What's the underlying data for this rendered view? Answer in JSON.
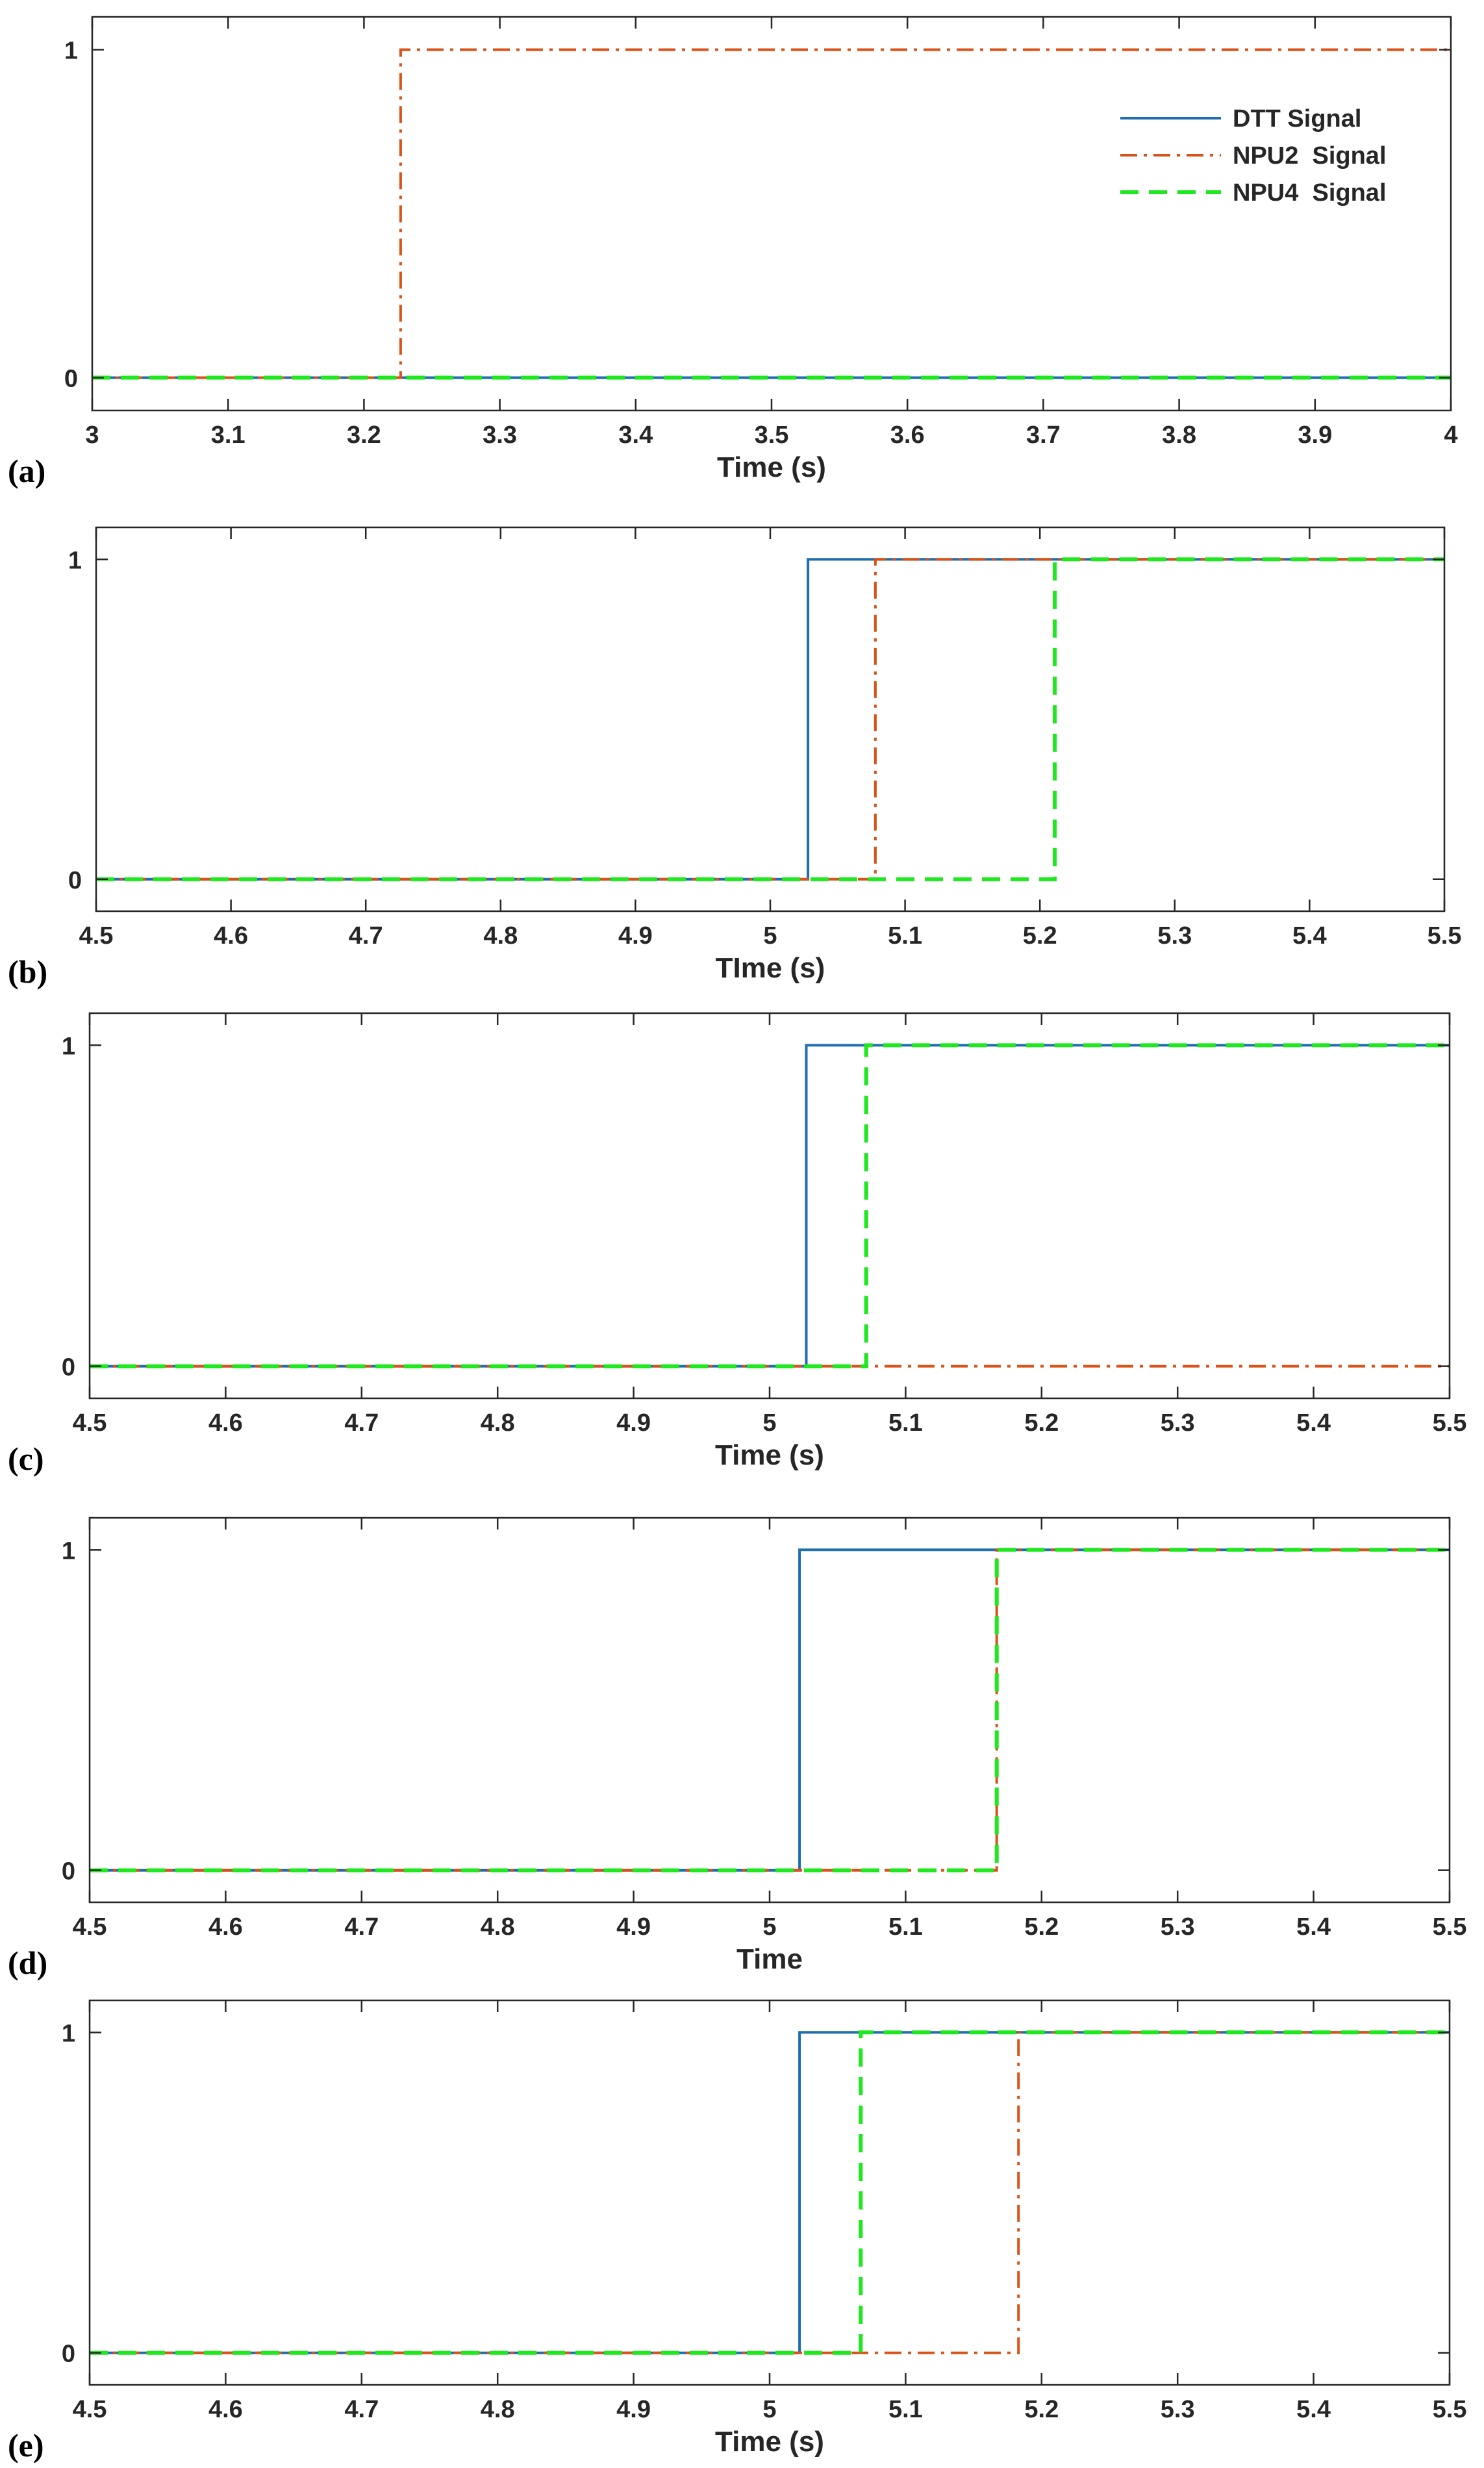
{
  "colors": {
    "dtt": "#1f6fb0",
    "npu2": "#d95319",
    "npu4": "#1ee81e",
    "axis": "#262626"
  },
  "legend": {
    "placement": "top-right of panel (a)",
    "entries": [
      "DTT Signal",
      "NPU2  Signal",
      "NPU4  Signal"
    ]
  },
  "chart_data": [
    {
      "type": "line",
      "panel_label": "(a)",
      "xlabel": "Time (s)",
      "xlim": [
        3,
        4
      ],
      "ylim": [
        -0.1,
        1.1
      ],
      "xticks": [
        "3",
        "3.1",
        "3.2",
        "3.3",
        "3.4",
        "3.5",
        "3.6",
        "3.7",
        "3.8",
        "3.9",
        "4"
      ],
      "yticks": [
        "0",
        "1"
      ],
      "series": [
        {
          "name": "DTT Signal",
          "style": "solid",
          "color": "#1f6fb0",
          "x": [
            3,
            4
          ],
          "y": [
            0,
            0
          ]
        },
        {
          "name": "NPU2  Signal",
          "style": "dashdot",
          "color": "#d95319",
          "x": [
            3,
            3.227,
            3.227,
            4
          ],
          "y": [
            0,
            0,
            1,
            1
          ]
        },
        {
          "name": "NPU4  Signal",
          "style": "dashed",
          "color": "#1ee81e",
          "x": [
            3,
            4
          ],
          "y": [
            0,
            0
          ]
        }
      ]
    },
    {
      "type": "line",
      "panel_label": "(b)",
      "xlabel": "TIme (s)",
      "xlim": [
        4.5,
        5.5
      ],
      "ylim": [
        -0.1,
        1.1
      ],
      "xticks": [
        "4.5",
        "4.6",
        "4.7",
        "4.8",
        "4.9",
        "5",
        "5.1",
        "5.2",
        "5.3",
        "5.4",
        "5.5"
      ],
      "yticks": [
        "0",
        "1"
      ],
      "series": [
        {
          "name": "DTT Signal",
          "style": "solid",
          "color": "#1f6fb0",
          "x": [
            4.5,
            5.028,
            5.028,
            5.5
          ],
          "y": [
            0,
            0,
            1,
            1
          ]
        },
        {
          "name": "NPU2  Signal",
          "style": "dashdot",
          "color": "#d95319",
          "x": [
            4.5,
            5.078,
            5.078,
            5.5
          ],
          "y": [
            0,
            0,
            1,
            1
          ]
        },
        {
          "name": "NPU4  Signal",
          "style": "dashed",
          "color": "#1ee81e",
          "x": [
            4.5,
            5.211,
            5.211,
            5.5
          ],
          "y": [
            0,
            0,
            1,
            1
          ]
        }
      ]
    },
    {
      "type": "line",
      "panel_label": "(c)",
      "xlabel": "Time (s)",
      "xlim": [
        4.5,
        5.5
      ],
      "ylim": [
        -0.1,
        1.1
      ],
      "xticks": [
        "4.5",
        "4.6",
        "4.7",
        "4.8",
        "4.9",
        "5",
        "5.1",
        "5.2",
        "5.3",
        "5.4",
        "5.5"
      ],
      "yticks": [
        "0",
        "1"
      ],
      "series": [
        {
          "name": "DTT Signal",
          "style": "solid",
          "color": "#1f6fb0",
          "x": [
            4.5,
            5.027,
            5.027,
            5.5
          ],
          "y": [
            0,
            0,
            1,
            1
          ]
        },
        {
          "name": "NPU2  Signal",
          "style": "dashdot",
          "color": "#d95319",
          "x": [
            4.5,
            5.5
          ],
          "y": [
            0,
            0
          ]
        },
        {
          "name": "NPU4  Signal",
          "style": "dashed",
          "color": "#1ee81e",
          "x": [
            4.5,
            5.071,
            5.071,
            5.5
          ],
          "y": [
            0,
            0,
            1,
            1
          ]
        }
      ]
    },
    {
      "type": "line",
      "panel_label": "(d)",
      "xlabel": "Time",
      "xlim": [
        4.5,
        5.5
      ],
      "ylim": [
        -0.1,
        1.1
      ],
      "xticks": [
        "4.5",
        "4.6",
        "4.7",
        "4.8",
        "4.9",
        "5",
        "5.1",
        "5.2",
        "5.3",
        "5.4",
        "5.5"
      ],
      "yticks": [
        "0",
        "1"
      ],
      "series": [
        {
          "name": "DTT Signal",
          "style": "solid",
          "color": "#1f6fb0",
          "x": [
            4.5,
            5.022,
            5.022,
            5.5
          ],
          "y": [
            0,
            0,
            1,
            1
          ]
        },
        {
          "name": "NPU2  Signal",
          "style": "dashdot",
          "color": "#d95319",
          "x": [
            4.5,
            5.167,
            5.167,
            5.5
          ],
          "y": [
            0,
            0,
            1,
            1
          ]
        },
        {
          "name": "NPU4  Signal",
          "style": "dashed",
          "color": "#1ee81e",
          "x": [
            4.5,
            5.167,
            5.167,
            5.5
          ],
          "y": [
            0,
            0,
            1,
            1
          ]
        }
      ]
    },
    {
      "type": "line",
      "panel_label": "(e)",
      "xlabel": "Time (s)",
      "xlim": [
        4.5,
        5.5
      ],
      "ylim": [
        -0.1,
        1.1
      ],
      "xticks": [
        "4.5",
        "4.6",
        "4.7",
        "4.8",
        "4.9",
        "5",
        "5.1",
        "5.2",
        "5.3",
        "5.4",
        "5.5"
      ],
      "yticks": [
        "0",
        "1"
      ],
      "series": [
        {
          "name": "DTT Signal",
          "style": "solid",
          "color": "#1f6fb0",
          "x": [
            4.5,
            5.022,
            5.022,
            5.5
          ],
          "y": [
            0,
            0,
            1,
            1
          ]
        },
        {
          "name": "NPU2  Signal",
          "style": "dashdot",
          "color": "#d95319",
          "x": [
            4.5,
            5.183,
            5.183,
            5.5
          ],
          "y": [
            0,
            0,
            1,
            1
          ]
        },
        {
          "name": "NPU4  Signal",
          "style": "dashed",
          "color": "#1ee81e",
          "x": [
            4.5,
            5.067,
            5.067,
            5.5
          ],
          "y": [
            0,
            0,
            1,
            1
          ]
        }
      ]
    }
  ]
}
